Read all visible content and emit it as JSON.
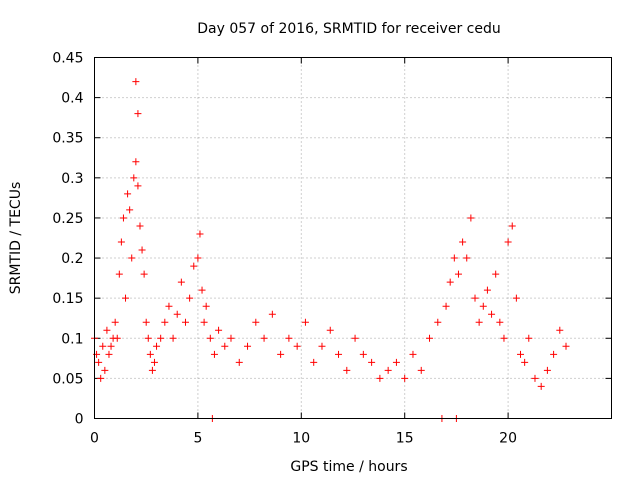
{
  "chart_data": {
    "type": "scatter",
    "title": "Day 057 of 2016, SRMTID for receiver cedu",
    "xlabel": "GPS time / hours",
    "ylabel": "SRMTID / TECUs",
    "xlim": [
      0,
      25
    ],
    "ylim": [
      0,
      0.45
    ],
    "xticks": [
      0,
      5,
      10,
      15,
      20
    ],
    "xtick_labels": [
      "0",
      "5",
      "10",
      "15",
      "20"
    ],
    "yticks": [
      0,
      0.05,
      0.1,
      0.15,
      0.2,
      0.25,
      0.3,
      0.35,
      0.4,
      0.45
    ],
    "ytick_labels": [
      "0",
      "0.05",
      "0.1",
      "0.15",
      "0.2",
      "0.25",
      "0.3",
      "0.35",
      "0.4",
      "0.45"
    ],
    "grid": true,
    "marker": "+",
    "color": "#ff0000",
    "series": [
      {
        "name": "SRMTID",
        "x": [
          0.0,
          0.1,
          0.2,
          0.3,
          0.4,
          0.5,
          0.6,
          0.7,
          0.8,
          0.9,
          1.0,
          1.1,
          1.2,
          1.3,
          1.4,
          1.5,
          1.6,
          1.7,
          1.8,
          1.9,
          2.0,
          2.1,
          2.2,
          2.3,
          2.4,
          2.5,
          2.6,
          2.7,
          2.8,
          2.9,
          3.0,
          3.2,
          3.4,
          3.6,
          3.8,
          4.0,
          4.2,
          4.4,
          4.6,
          4.8,
          5.0,
          5.1,
          5.2,
          5.3,
          5.4,
          5.6,
          5.8,
          6.0,
          6.3,
          6.6,
          7.0,
          7.4,
          7.8,
          8.2,
          8.6,
          9.0,
          9.4,
          9.8,
          10.2,
          10.6,
          11.0,
          11.4,
          11.8,
          12.2,
          12.6,
          13.0,
          13.4,
          13.8,
          14.2,
          14.6,
          15.0,
          15.4,
          15.8,
          16.2,
          16.6,
          17.0,
          17.2,
          17.4,
          17.6,
          17.8,
          18.0,
          18.2,
          18.4,
          18.6,
          18.8,
          19.0,
          19.2,
          19.4,
          19.6,
          19.8,
          20.0,
          20.2,
          20.4,
          20.6,
          20.8,
          21.0,
          21.3,
          21.6,
          21.9,
          22.2,
          22.5,
          22.8,
          2.0,
          2.1,
          5.7,
          16.8,
          17.5
        ],
        "y": [
          0.1,
          0.08,
          0.07,
          0.05,
          0.09,
          0.06,
          0.11,
          0.08,
          0.09,
          0.1,
          0.12,
          0.1,
          0.18,
          0.22,
          0.25,
          0.15,
          0.28,
          0.26,
          0.2,
          0.3,
          0.32,
          0.29,
          0.24,
          0.21,
          0.18,
          0.12,
          0.1,
          0.08,
          0.06,
          0.07,
          0.09,
          0.1,
          0.12,
          0.14,
          0.1,
          0.13,
          0.17,
          0.12,
          0.15,
          0.19,
          0.2,
          0.23,
          0.16,
          0.12,
          0.14,
          0.1,
          0.08,
          0.11,
          0.09,
          0.1,
          0.07,
          0.09,
          0.12,
          0.1,
          0.13,
          0.08,
          0.1,
          0.09,
          0.12,
          0.07,
          0.09,
          0.11,
          0.08,
          0.06,
          0.1,
          0.08,
          0.07,
          0.05,
          0.06,
          0.07,
          0.05,
          0.08,
          0.06,
          0.1,
          0.12,
          0.14,
          0.17,
          0.2,
          0.18,
          0.22,
          0.2,
          0.25,
          0.15,
          0.12,
          0.14,
          0.16,
          0.13,
          0.18,
          0.12,
          0.1,
          0.22,
          0.24,
          0.15,
          0.08,
          0.07,
          0.1,
          0.05,
          0.04,
          0.06,
          0.08,
          0.11,
          0.09,
          0.42,
          0.38,
          0.0,
          0.0,
          0.0
        ]
      }
    ]
  }
}
